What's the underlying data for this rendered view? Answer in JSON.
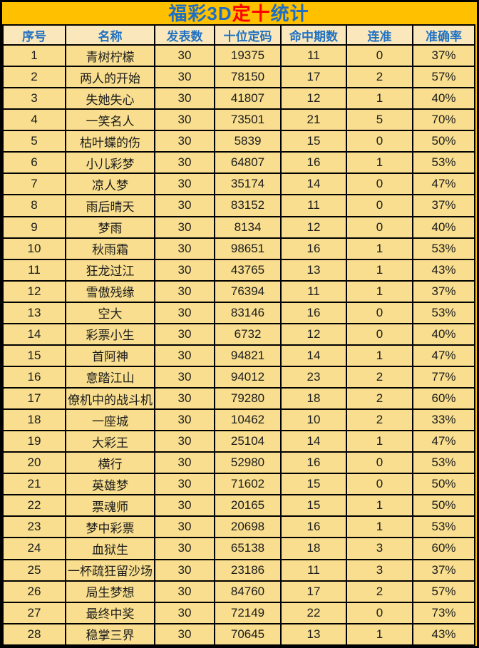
{
  "title": {
    "part1": "福彩3D",
    "part2": "定十",
    "part3": "统计"
  },
  "colors": {
    "page_background": "#FFC000",
    "title_blue": "#1E6EC4",
    "title_red": "#FE0000",
    "header_background": "#FAE8BC",
    "header_text": "#2272C3",
    "row_background": "#F8DE8E",
    "row_text": "#1C1C1C",
    "grid_border": "#000000"
  },
  "table": {
    "headers": [
      "序号",
      "名称",
      "发表数",
      "十位定码",
      "命中期数",
      "连准",
      "准确率"
    ],
    "rows": [
      [
        "1",
        "青树柠檬",
        "30",
        "19375",
        "11",
        "0",
        "37%"
      ],
      [
        "2",
        "两人的开始",
        "30",
        "78150",
        "17",
        "2",
        "57%"
      ],
      [
        "3",
        "失她失心",
        "30",
        "41807",
        "12",
        "1",
        "40%"
      ],
      [
        "4",
        "一笑名人",
        "30",
        "73501",
        "21",
        "5",
        "70%"
      ],
      [
        "5",
        "枯叶蝶的伤",
        "30",
        "5839",
        "15",
        "0",
        "50%"
      ],
      [
        "6",
        "小儿彩梦",
        "30",
        "64807",
        "16",
        "1",
        "53%"
      ],
      [
        "7",
        "凉人梦",
        "30",
        "35174",
        "14",
        "0",
        "47%"
      ],
      [
        "8",
        "雨后晴天",
        "30",
        "83152",
        "11",
        "0",
        "37%"
      ],
      [
        "9",
        "梦雨",
        "30",
        "8134",
        "12",
        "0",
        "40%"
      ],
      [
        "10",
        "秋雨霜",
        "30",
        "98651",
        "16",
        "1",
        "53%"
      ],
      [
        "11",
        "狂龙过江",
        "30",
        "43765",
        "13",
        "1",
        "43%"
      ],
      [
        "12",
        "雪傲残缘",
        "30",
        "76394",
        "11",
        "1",
        "37%"
      ],
      [
        "13",
        "空大",
        "30",
        "83146",
        "16",
        "0",
        "53%"
      ],
      [
        "14",
        "彩票小生",
        "30",
        "6732",
        "12",
        "0",
        "40%"
      ],
      [
        "15",
        "首阿神",
        "30",
        "94821",
        "14",
        "1",
        "47%"
      ],
      [
        "16",
        "意踏江山",
        "30",
        "94012",
        "23",
        "2",
        "77%"
      ],
      [
        "17",
        "僚机中的战斗机",
        "30",
        "79280",
        "18",
        "2",
        "60%"
      ],
      [
        "18",
        "一座城",
        "30",
        "10462",
        "10",
        "2",
        "33%"
      ],
      [
        "19",
        "大彩王",
        "30",
        "25104",
        "14",
        "1",
        "47%"
      ],
      [
        "20",
        "横行",
        "30",
        "52980",
        "16",
        "0",
        "53%"
      ],
      [
        "21",
        "英雄梦",
        "30",
        "71602",
        "15",
        "0",
        "50%"
      ],
      [
        "22",
        "票魂师",
        "30",
        "20165",
        "15",
        "1",
        "50%"
      ],
      [
        "23",
        "梦中彩票",
        "30",
        "20698",
        "16",
        "1",
        "53%"
      ],
      [
        "24",
        "血狱生",
        "30",
        "65138",
        "18",
        "3",
        "60%"
      ],
      [
        "25",
        "一杯疏狂留沙场",
        "30",
        "23186",
        "11",
        "3",
        "37%"
      ],
      [
        "26",
        "局生梦想",
        "30",
        "84760",
        "17",
        "2",
        "57%"
      ],
      [
        "27",
        "最终中奖",
        "30",
        "72149",
        "22",
        "0",
        "73%"
      ],
      [
        "28",
        "稳掌三界",
        "30",
        "70645",
        "13",
        "1",
        "43%"
      ]
    ]
  }
}
